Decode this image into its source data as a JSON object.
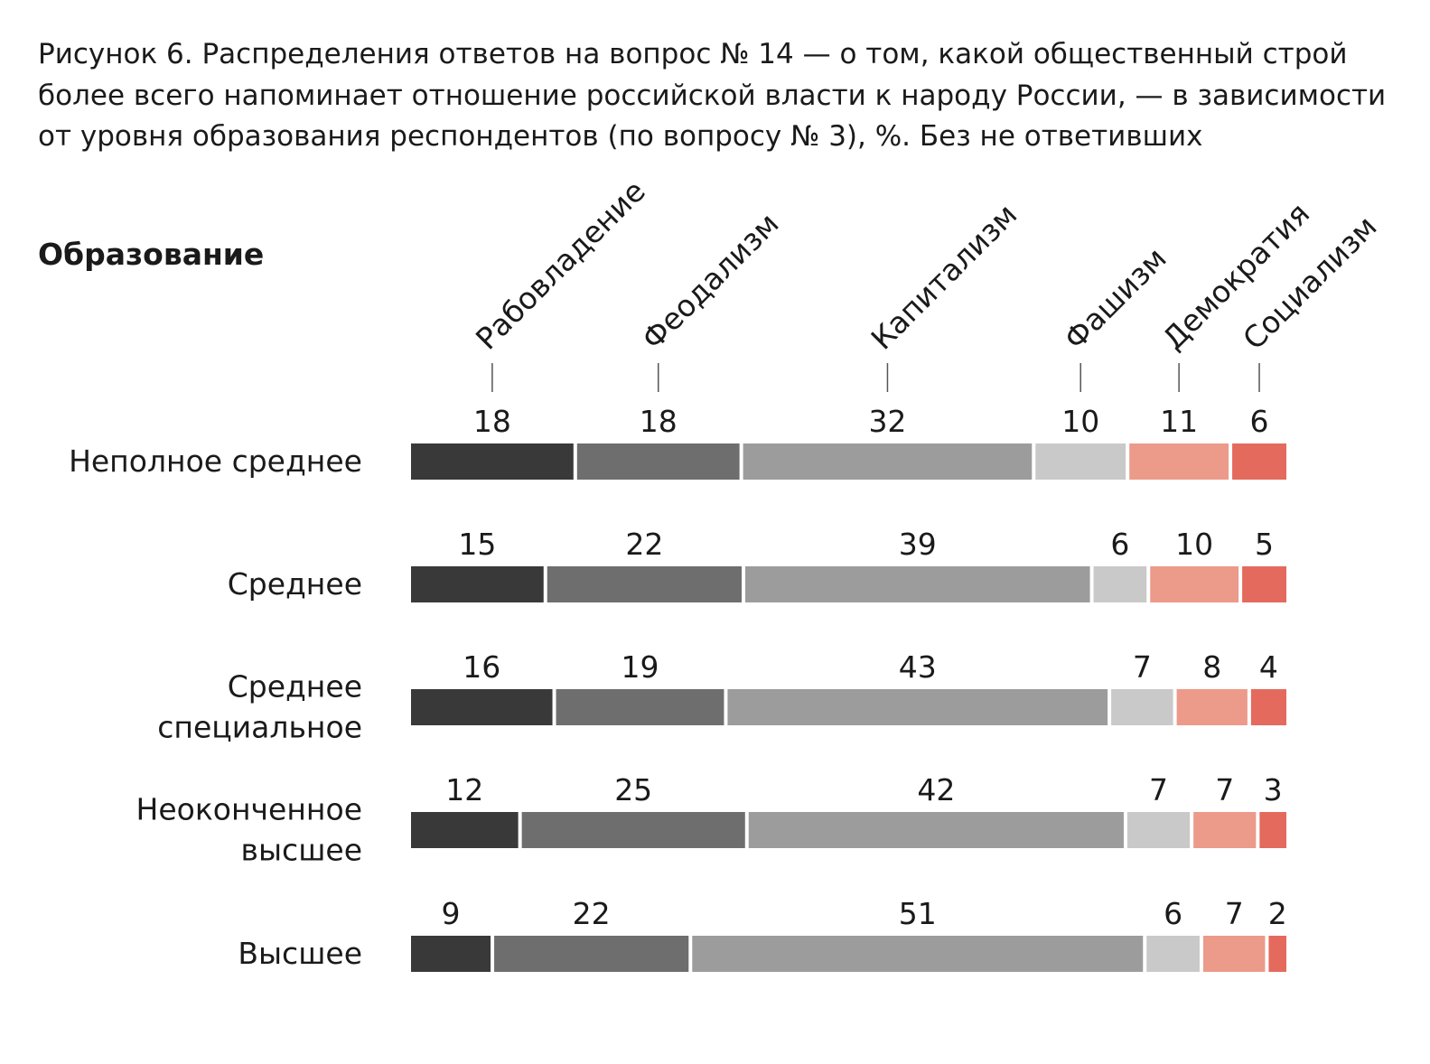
{
  "chart_data": {
    "type": "bar",
    "stacked": true,
    "orientation": "horizontal",
    "title": "Рисунок 6. Распределения ответов на вопрос № 14 — о том, какой общественный строй более всего напоминает отношение российской власти к народу России, — в зависимости от уровня образования респондентов (по вопросу № 3), %. Без не ответивших",
    "row_header": "Образование",
    "categories": [
      "Неполное среднее",
      "Среднее",
      "Среднее специальное",
      "Неоконченное высшее",
      "Высшее"
    ],
    "series": [
      {
        "name": "Рабовладение",
        "color": "#393939",
        "values": [
          18,
          15,
          16,
          12,
          9
        ]
      },
      {
        "name": "Феодализм",
        "color": "#6e6e6e",
        "values": [
          18,
          22,
          19,
          25,
          22
        ]
      },
      {
        "name": "Капитализм",
        "color": "#9c9c9c",
        "values": [
          32,
          39,
          43,
          42,
          51
        ]
      },
      {
        "name": "Фашизм",
        "color": "#c9c9c9",
        "values": [
          10,
          6,
          7,
          7,
          6
        ]
      },
      {
        "name": "Демократия",
        "color": "#ec9a8a",
        "values": [
          11,
          10,
          8,
          7,
          7
        ]
      },
      {
        "name": "Социализм",
        "color": "#e46a5e",
        "values": [
          6,
          5,
          4,
          3,
          2
        ]
      }
    ],
    "legend_placement": "top, rotated labels above first bar",
    "grid": false
  }
}
